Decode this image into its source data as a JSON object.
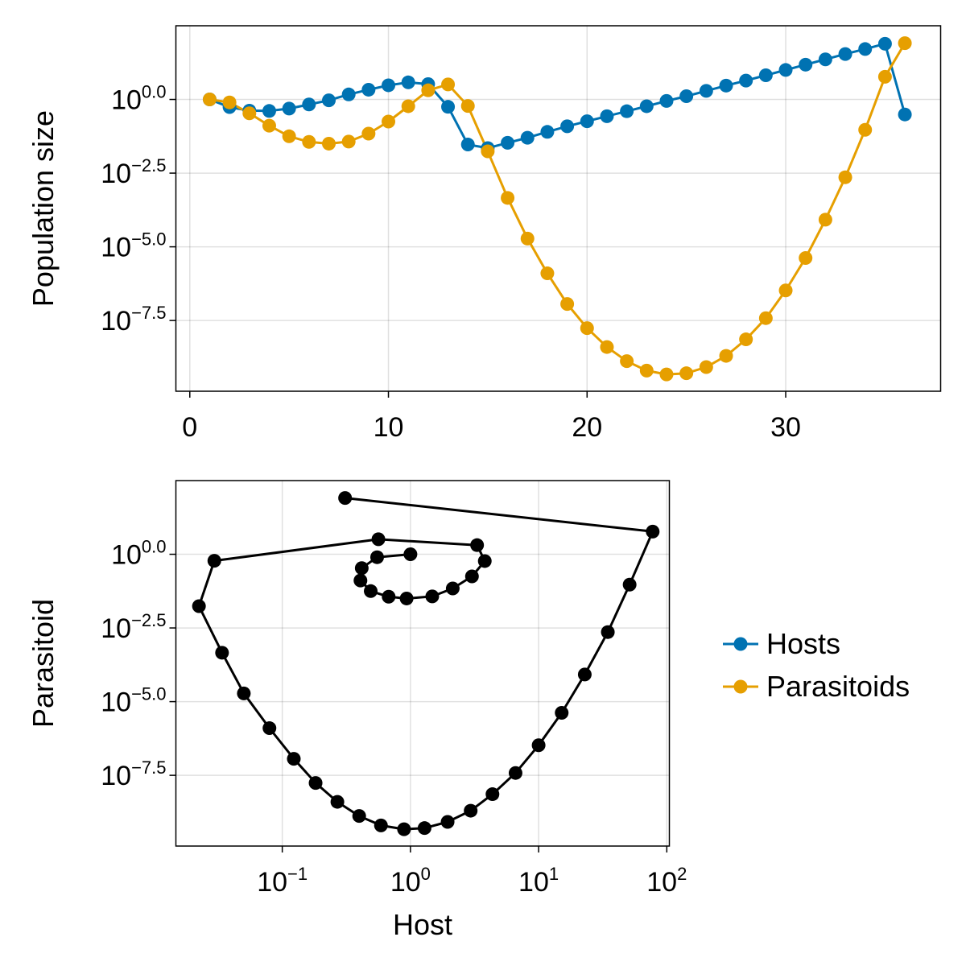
{
  "chart_data": [
    {
      "type": "line",
      "ylabel": "Population size",
      "xlabel": "",
      "xlim": [
        -0.7,
        37.8
      ],
      "ylim": [
        -9.9,
        2.5
      ],
      "y_scale": "log10",
      "xticks": [
        0,
        10,
        20,
        30
      ],
      "xtick_labels": [
        "0",
        "10",
        "20",
        "30"
      ],
      "yticks": [
        0,
        -2.5,
        -5,
        -7.5
      ],
      "ytick_base": "10",
      "ytick_exponents": [
        "0.0",
        "−2.5",
        "−5.0",
        "−7.5"
      ],
      "grid": true,
      "x": [
        1,
        2,
        3,
        4,
        5,
        6,
        7,
        8,
        9,
        10,
        11,
        12,
        13,
        14,
        15,
        16,
        17,
        18,
        19,
        20,
        21,
        22,
        23,
        24,
        25,
        26,
        27,
        28,
        29,
        30,
        31,
        32,
        33,
        34,
        35,
        36
      ],
      "series": [
        {
          "name": "Hosts",
          "color": "#0072b2",
          "log10_values": [
            0.0,
            -0.26,
            -0.38,
            -0.39,
            -0.31,
            -0.17,
            -0.03,
            0.17,
            0.33,
            0.48,
            0.58,
            0.52,
            -0.25,
            -1.53,
            -1.65,
            -1.47,
            -1.3,
            -1.1,
            -0.91,
            -0.74,
            -0.57,
            -0.4,
            -0.23,
            -0.05,
            0.11,
            0.29,
            0.47,
            0.64,
            0.82,
            1.0,
            1.18,
            1.36,
            1.54,
            1.71,
            1.89,
            -0.51
          ]
        },
        {
          "name": "Parasitoids",
          "color": "#e69f00",
          "log10_values": [
            0.0,
            -0.1,
            -0.47,
            -0.89,
            -1.25,
            -1.44,
            -1.5,
            -1.43,
            -1.16,
            -0.75,
            -0.23,
            0.31,
            0.51,
            -0.22,
            -1.76,
            -3.34,
            -4.72,
            -5.9,
            -6.94,
            -7.76,
            -8.4,
            -8.88,
            -9.2,
            -9.33,
            -9.29,
            -9.08,
            -8.7,
            -8.14,
            -7.42,
            -6.48,
            -5.38,
            -4.08,
            -2.64,
            -1.03,
            0.77,
            1.91
          ]
        }
      ]
    },
    {
      "type": "line",
      "xlabel": "Host",
      "ylabel": "Parasitoid",
      "x_scale": "log10",
      "y_scale": "log10",
      "xlim_log10": [
        -1.83,
        2.02
      ],
      "ylim_log10": [
        -9.9,
        2.5
      ],
      "xtick_exponents": [
        "−1",
        "0",
        "1",
        "2"
      ],
      "xticks_log10": [
        -1,
        0,
        1,
        2
      ],
      "yticks_log10": [
        0,
        -2.5,
        -5,
        -7.5
      ],
      "ytick_base": "10",
      "ytick_exponents": [
        "0.0",
        "−2.5",
        "−5.0",
        "−7.5"
      ],
      "grid": true,
      "color": "#000000",
      "points_log10": [
        [
          0.0,
          0.0
        ],
        [
          -0.26,
          -0.1
        ],
        [
          -0.38,
          -0.47
        ],
        [
          -0.39,
          -0.89
        ],
        [
          -0.31,
          -1.25
        ],
        [
          -0.17,
          -1.44
        ],
        [
          -0.03,
          -1.5
        ],
        [
          0.17,
          -1.43
        ],
        [
          0.33,
          -1.16
        ],
        [
          0.48,
          -0.75
        ],
        [
          0.58,
          -0.23
        ],
        [
          0.52,
          0.31
        ],
        [
          -0.25,
          0.51
        ],
        [
          -1.53,
          -0.22
        ],
        [
          -1.65,
          -1.76
        ],
        [
          -1.47,
          -3.34
        ],
        [
          -1.3,
          -4.72
        ],
        [
          -1.1,
          -5.9
        ],
        [
          -0.91,
          -6.94
        ],
        [
          -0.74,
          -7.76
        ],
        [
          -0.57,
          -8.4
        ],
        [
          -0.4,
          -8.88
        ],
        [
          -0.23,
          -9.2
        ],
        [
          -0.05,
          -9.33
        ],
        [
          0.11,
          -9.29
        ],
        [
          0.29,
          -9.08
        ],
        [
          0.47,
          -8.7
        ],
        [
          0.64,
          -8.14
        ],
        [
          0.82,
          -7.42
        ],
        [
          1.0,
          -6.48
        ],
        [
          1.18,
          -5.38
        ],
        [
          1.36,
          -4.08
        ],
        [
          1.54,
          -2.64
        ],
        [
          1.71,
          -1.03
        ],
        [
          1.89,
          0.77
        ],
        [
          -0.51,
          1.91
        ]
      ]
    }
  ],
  "legend": {
    "placement": "right",
    "items": [
      {
        "label": "Hosts",
        "color": "#0072b2"
      },
      {
        "label": "Parasitoids",
        "color": "#e69f00"
      }
    ]
  }
}
